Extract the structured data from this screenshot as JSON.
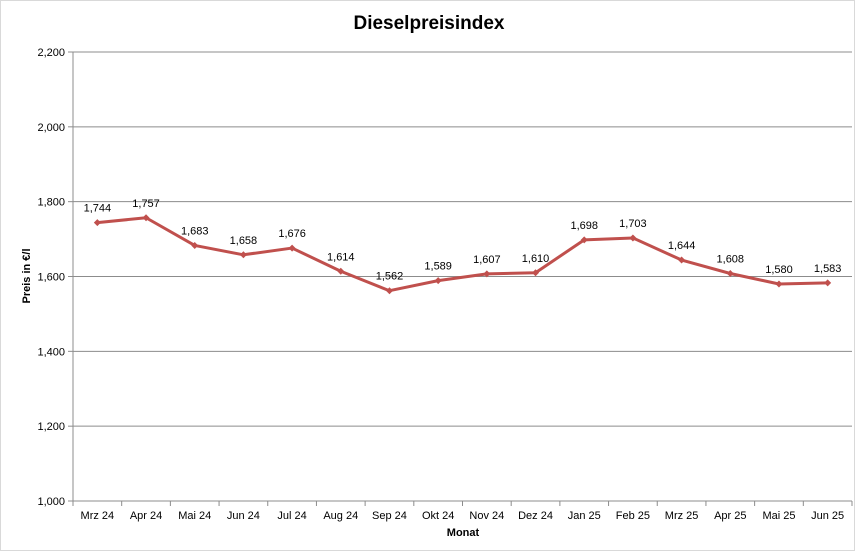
{
  "chart_data": {
    "type": "line",
    "title": "Dieselpreisindex",
    "xlabel": "Monat",
    "ylabel": "Preis in €/l",
    "categories": [
      "Mrz 24",
      "Apr 24",
      "Mai 24",
      "Jun 24",
      "Jul 24",
      "Aug 24",
      "Sep 24",
      "Okt 24",
      "Nov 24",
      "Dez 24",
      "Jan 25",
      "Feb 25",
      "Mrz 25",
      "Apr 25",
      "Mai 25",
      "Jun 25"
    ],
    "series": [
      {
        "values": [
          1.744,
          1.757,
          1.683,
          1.658,
          1.676,
          1.614,
          1.562,
          1.589,
          1.607,
          1.61,
          1.698,
          1.703,
          1.644,
          1.608,
          1.58,
          1.583
        ],
        "labels": [
          "1,744",
          "1,757",
          "1,683",
          "1,658",
          "1,676",
          "1,614",
          "1,562",
          "1,589",
          "1,607",
          "1,610",
          "1,698",
          "1,703",
          "1,644",
          "1,608",
          "1,580",
          "1,583"
        ],
        "color": "#c0504d"
      }
    ],
    "ylim": [
      1.0,
      2.2
    ],
    "yticks": [
      1.0,
      1.2,
      1.4,
      1.6,
      1.8,
      2.0,
      2.2
    ],
    "ytick_labels": [
      "1,000",
      "1,200",
      "1,400",
      "1,600",
      "1,800",
      "2,000",
      "2,200"
    ],
    "grid": true,
    "legend": "none"
  }
}
